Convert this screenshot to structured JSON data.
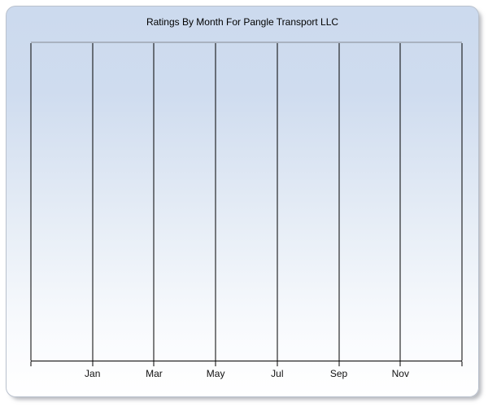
{
  "panel": {
    "background_top_color": "#ccdaee",
    "background_bottom_color": "#ffffff",
    "border_color": "#b9c1cd",
    "plot_top_border_color": "#a9b2c0",
    "gridline_color": "#000000",
    "axis_color": "#000000",
    "text_color": "#000000"
  },
  "chart_data": {
    "type": "line",
    "title": "Ratings By Month For Pangle Transport LLC",
    "xlabel": "",
    "ylabel": "",
    "x_tick_labels": [
      "Jan",
      "Mar",
      "May",
      "Jul",
      "Sep",
      "Nov"
    ],
    "x_gridline_count": 8,
    "series": [],
    "grid": "vertical-only",
    "legend": "none",
    "y_tick_labels": []
  }
}
